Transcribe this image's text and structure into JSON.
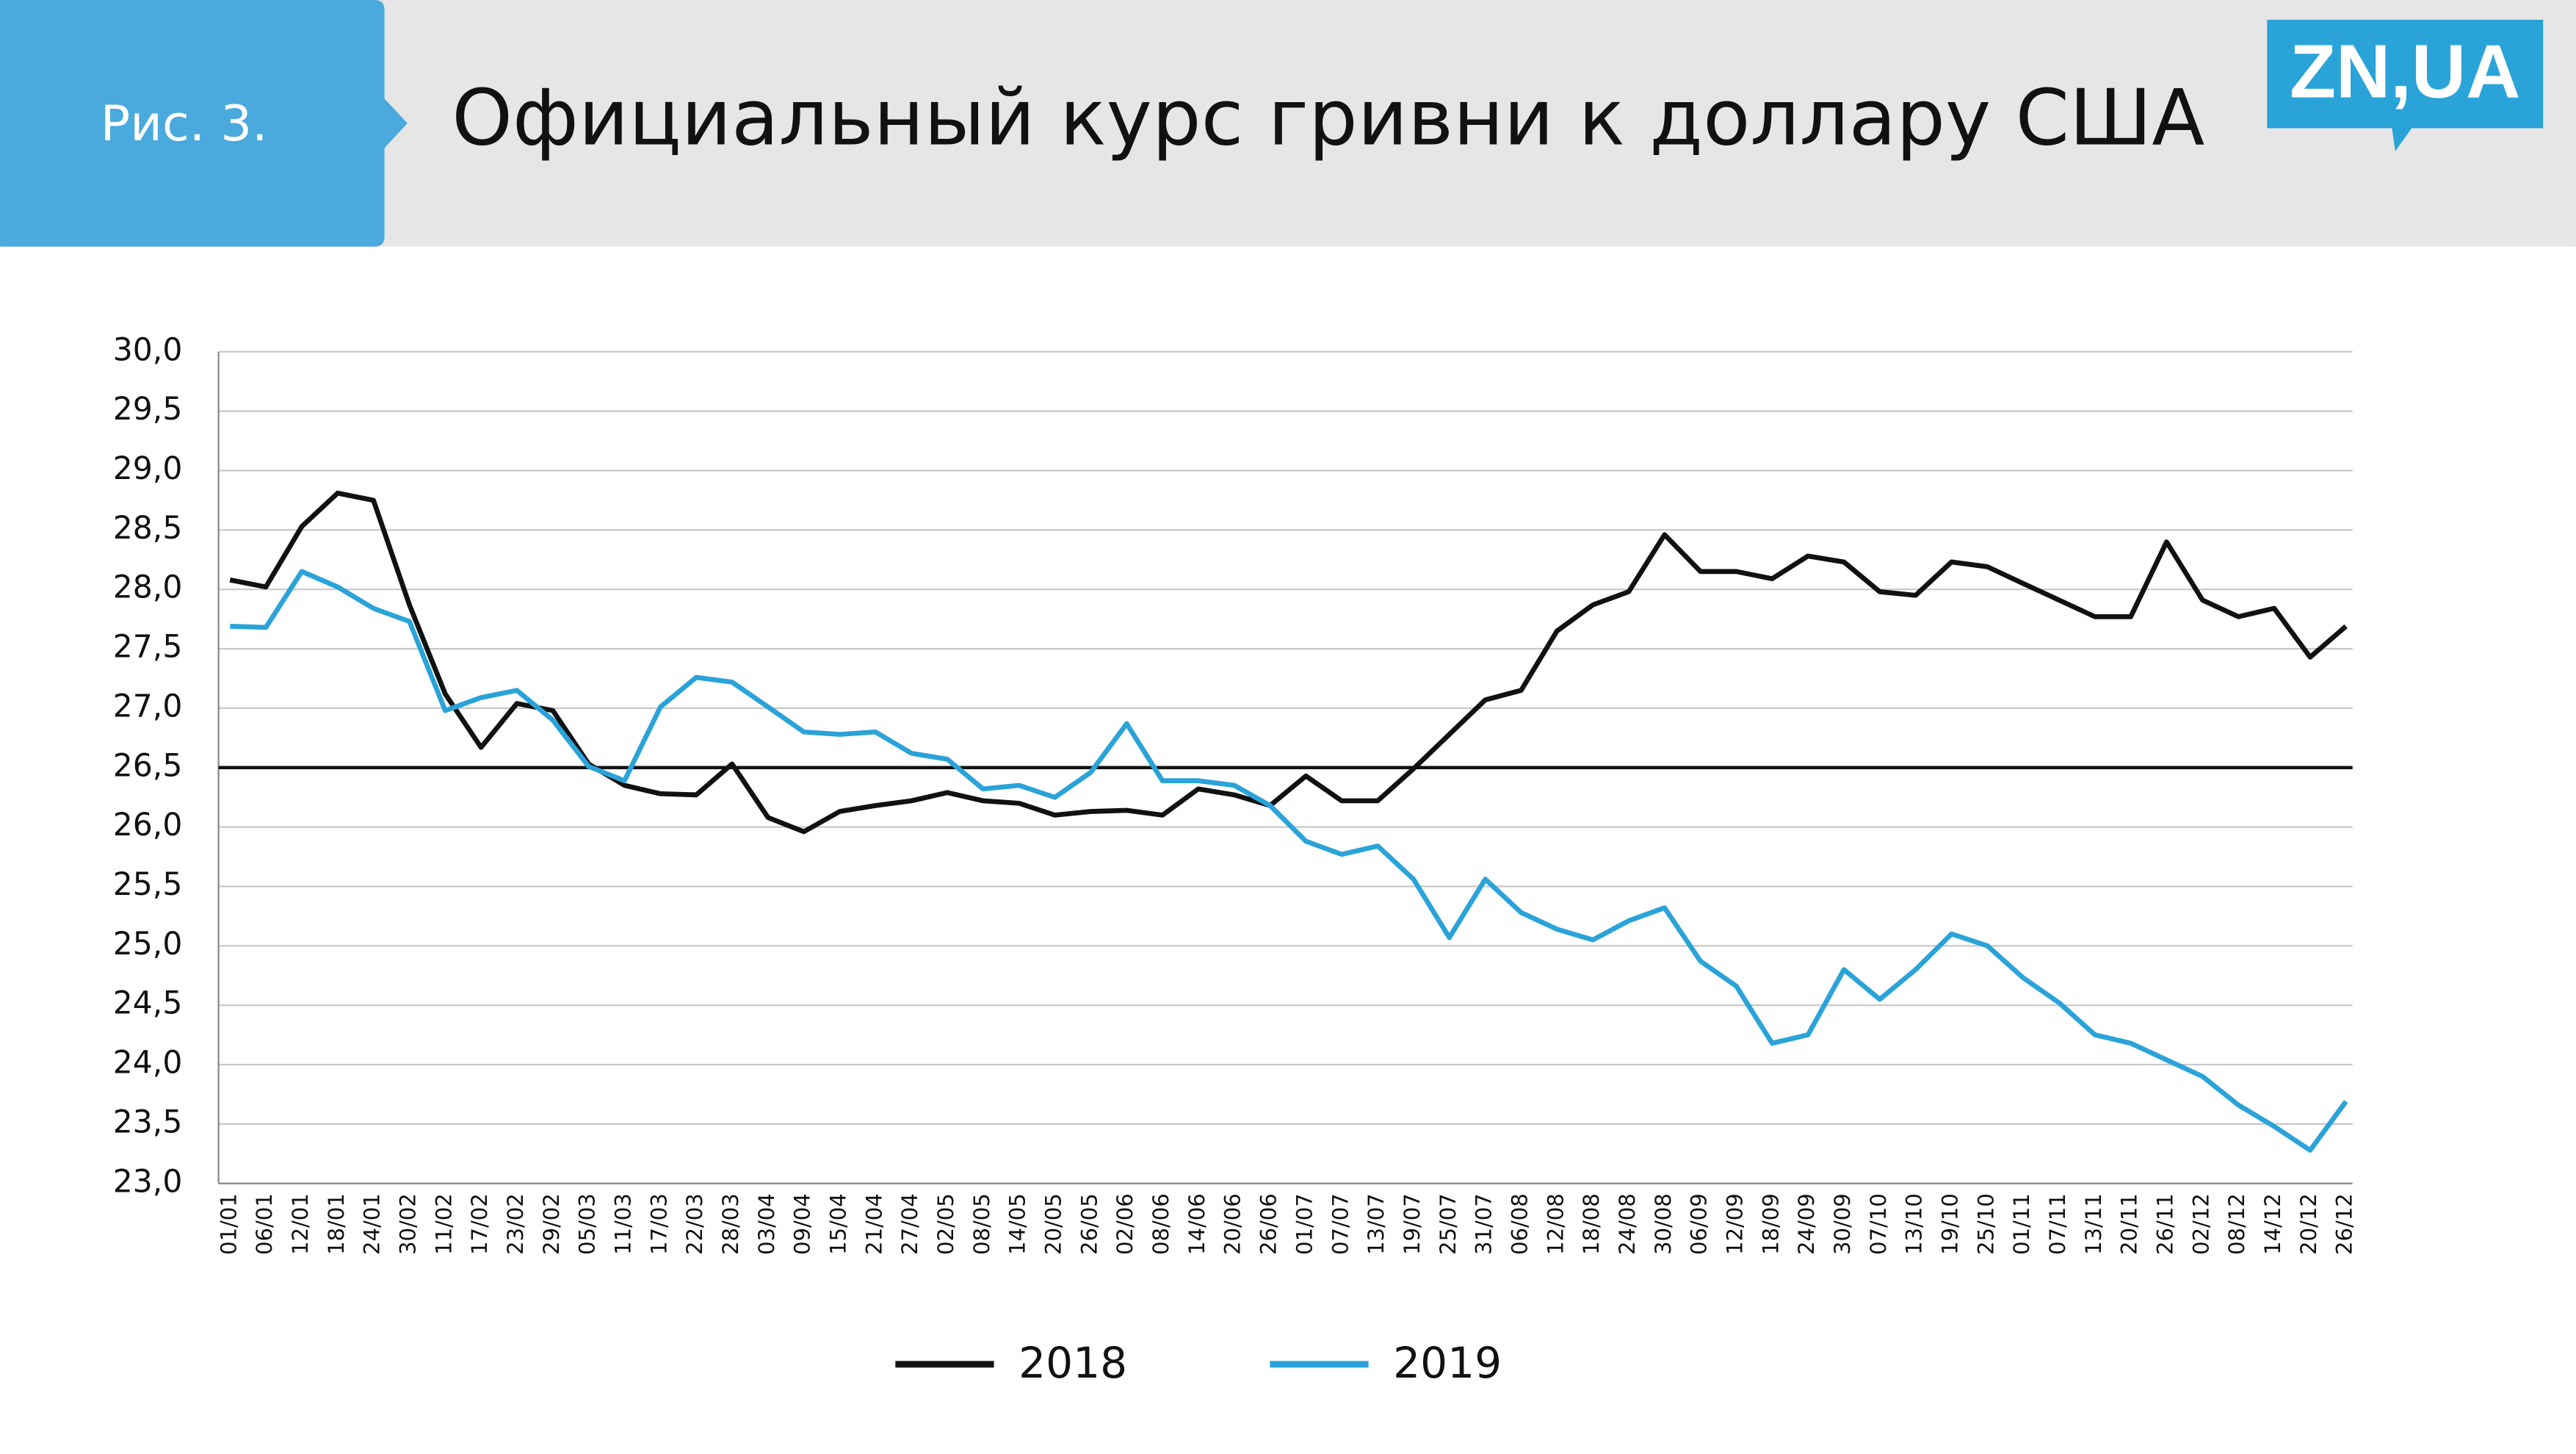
{
  "header": {
    "figure_label": "Рис. 3.",
    "logo": "ZN,UA"
  },
  "chart_data": {
    "type": "line",
    "title": "Официальный курс гривни к доллару США",
    "categories": [
      "01/01",
      "06/01",
      "12/01",
      "18/01",
      "24/01",
      "30/02",
      "11/02",
      "17/02",
      "23/02",
      "29/02",
      "05/03",
      "11/03",
      "17/03",
      "22/03",
      "28/03",
      "03/04",
      "09/04",
      "15/04",
      "21/04",
      "27/04",
      "02/05",
      "08/05",
      "14/05",
      "20/05",
      "26/05",
      "02/06",
      "08/06",
      "14/06",
      "20/06",
      "26/06",
      "01/07",
      "07/07",
      "13/07",
      "19/07",
      "25/07",
      "31/07",
      "06/08",
      "12/08",
      "18/08",
      "24/08",
      "30/08",
      "06/09",
      "12/09",
      "18/09",
      "24/09",
      "30/09",
      "07/10",
      "13/10",
      "19/10",
      "25/10",
      "01/11",
      "07/11",
      "13/11",
      "20/11",
      "26/11",
      "02/12",
      "08/12",
      "14/12",
      "20/12",
      "26/12"
    ],
    "series": [
      {
        "name": "2018",
        "color": "#111111",
        "values": [
          28.08,
          28.02,
          28.53,
          28.81,
          28.75,
          27.87,
          27.12,
          26.67,
          27.04,
          26.98,
          26.53,
          26.35,
          26.28,
          26.27,
          26.53,
          26.08,
          25.96,
          26.13,
          26.18,
          26.22,
          26.29,
          26.22,
          26.2,
          26.1,
          26.13,
          26.14,
          26.1,
          26.32,
          26.27,
          26.18,
          26.43,
          26.22,
          26.22,
          26.49,
          26.78,
          27.07,
          27.15,
          27.65,
          27.87,
          27.98,
          28.46,
          28.15,
          28.15,
          28.09,
          28.28,
          28.23,
          27.98,
          27.95,
          28.23,
          28.19,
          28.05,
          27.91,
          27.77,
          27.77,
          28.4,
          27.91,
          27.77,
          27.84,
          27.43,
          27.69
        ]
      },
      {
        "name": "2019",
        "color": "#2aa3d8",
        "values": [
          27.69,
          27.68,
          28.15,
          28.02,
          27.84,
          27.73,
          26.98,
          27.09,
          27.15,
          26.9,
          26.51,
          26.39,
          27.01,
          27.26,
          27.22,
          27.01,
          26.8,
          26.78,
          26.8,
          26.62,
          26.57,
          26.32,
          26.35,
          26.25,
          26.46,
          26.87,
          26.39,
          26.39,
          26.35,
          26.18,
          25.88,
          25.77,
          25.84,
          25.56,
          25.07,
          25.56,
          25.28,
          25.14,
          25.05,
          25.21,
          25.32,
          24.87,
          24.66,
          24.18,
          24.25,
          24.8,
          24.55,
          24.8,
          25.1,
          25.0,
          24.73,
          24.52,
          24.25,
          24.18,
          24.04,
          23.9,
          23.66,
          23.48,
          23.28,
          23.69
        ]
      }
    ],
    "ylim": [
      23,
      30
    ],
    "yticks": [
      {
        "value": 30,
        "label": "30,0"
      },
      {
        "value": 29.5,
        "label": "29,5"
      },
      {
        "value": 29,
        "label": "29,0"
      },
      {
        "value": 28.5,
        "label": "28,5"
      },
      {
        "value": 28,
        "label": "28,0"
      },
      {
        "value": 27.5,
        "label": "27,5"
      },
      {
        "value": 27,
        "label": "27,0"
      },
      {
        "value": 26.5,
        "label": "26,5"
      },
      {
        "value": 26,
        "label": "26,0"
      },
      {
        "value": 25.5,
        "label": "25,5"
      },
      {
        "value": 25,
        "label": "25,0"
      },
      {
        "value": 24.5,
        "label": "24,5"
      },
      {
        "value": 24,
        "label": "24,0"
      },
      {
        "value": 23.5,
        "label": "23,5"
      },
      {
        "value": 23,
        "label": "23,0"
      }
    ],
    "reference_line": 26.5,
    "grid": true,
    "legend": "bottom"
  }
}
